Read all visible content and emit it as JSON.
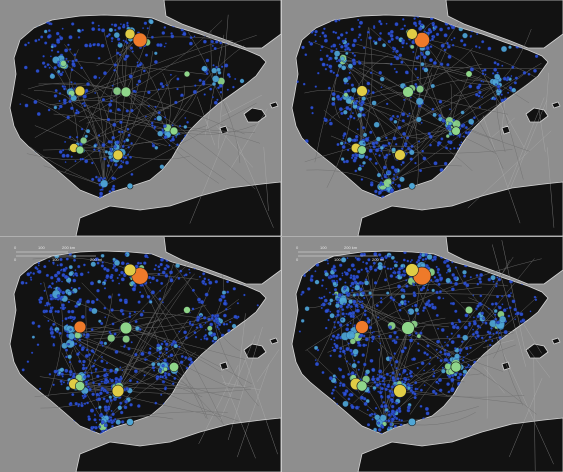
{
  "panels": [
    {
      "id": "panel-1",
      "density": 0.55,
      "growth": 1.0,
      "scale_bar": false
    },
    {
      "id": "panel-2",
      "density": 0.8,
      "growth": 1.08,
      "scale_bar": false
    },
    {
      "id": "panel-3",
      "density": 1.0,
      "growth": 1.18,
      "scale_bar": true
    },
    {
      "id": "panel-4",
      "density": 1.2,
      "growth": 1.28,
      "scale_bar": true
    }
  ],
  "scale_bar": {
    "ticks_top": [
      "0",
      "100",
      "200 km"
    ],
    "ticks_bottom": [
      "0",
      "100",
      "200 mi"
    ]
  },
  "colors": {
    "sea": "#8e8e8e",
    "land": "#121212",
    "coast": "#d4d4d4",
    "roads": "#6e6e6e",
    "small_points": "#2f53d8",
    "mid_points": "#4fa6d6",
    "green_points": "#8fd68a",
    "yellow_points": "#e0cc45",
    "orange_points": "#ee7a2a"
  }
}
